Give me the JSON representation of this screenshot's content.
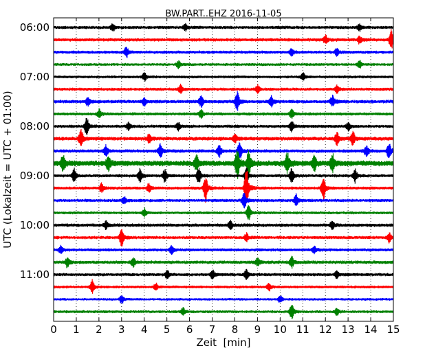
{
  "chart_data": {
    "type": "line",
    "title": "BW.PART..EHZ 2016-11-05",
    "xlabel": "Zeit  [min]",
    "ylabel": "UTC (Lokalzeit = UTC + 01:00)",
    "xlim": [
      0,
      15
    ],
    "x_ticks": [
      0,
      1,
      2,
      3,
      4,
      5,
      6,
      7,
      8,
      9,
      10,
      11,
      12,
      13,
      14,
      15
    ],
    "y_tick_labels": [
      "06:00",
      "07:00",
      "08:00",
      "09:00",
      "10:00",
      "11:00"
    ],
    "trace_interval_min": 15,
    "grid": "vertical dotted at each minute",
    "series_colors": [
      "#000000",
      "#ff0000",
      "#0000ff",
      "#008000"
    ],
    "traces": [
      {
        "start": "06:00",
        "color": "#000000",
        "base_amp": 1.0,
        "events": [
          [
            2.6,
            1.4
          ],
          [
            5.8,
            1.2
          ],
          [
            13.5,
            1.2
          ]
        ]
      },
      {
        "start": "06:15",
        "color": "#ff0000",
        "base_amp": 1.1,
        "events": [
          [
            14.9,
            3.5
          ],
          [
            12.0,
            1.5
          ],
          [
            13.5,
            1.5
          ]
        ]
      },
      {
        "start": "06:30",
        "color": "#0000ff",
        "base_amp": 1.0,
        "events": [
          [
            3.2,
            2.0
          ],
          [
            10.5,
            1.4
          ],
          [
            12.5,
            1.5
          ]
        ]
      },
      {
        "start": "06:45",
        "color": "#008000",
        "base_amp": 0.9,
        "events": [
          [
            5.5,
            1.4
          ],
          [
            13.5,
            1.5
          ]
        ]
      },
      {
        "start": "07:00",
        "color": "#000000",
        "base_amp": 0.9,
        "events": [
          [
            4.0,
            1.6
          ],
          [
            11.0,
            1.4
          ]
        ]
      },
      {
        "start": "07:15",
        "color": "#ff0000",
        "base_amp": 1.0,
        "events": [
          [
            5.6,
            1.6
          ],
          [
            9.0,
            1.4
          ],
          [
            12.5,
            1.4
          ]
        ]
      },
      {
        "start": "07:30",
        "color": "#0000ff",
        "base_amp": 1.1,
        "events": [
          [
            1.5,
            1.6
          ],
          [
            4.0,
            1.6
          ],
          [
            6.5,
            2.2
          ],
          [
            8.1,
            3.5
          ],
          [
            9.6,
            2.0
          ],
          [
            12.3,
            2.2
          ]
        ]
      },
      {
        "start": "07:45",
        "color": "#008000",
        "base_amp": 1.0,
        "events": [
          [
            2.0,
            1.6
          ],
          [
            6.5,
            1.6
          ],
          [
            10.5,
            1.6
          ]
        ]
      },
      {
        "start": "08:00",
        "color": "#000000",
        "base_amp": 1.0,
        "events": [
          [
            1.45,
            3.5
          ],
          [
            3.3,
            1.5
          ],
          [
            5.5,
            1.5
          ],
          [
            10.5,
            2.2
          ],
          [
            13.0,
            1.6
          ]
        ]
      },
      {
        "start": "08:15",
        "color": "#ff0000",
        "base_amp": 1.2,
        "events": [
          [
            1.2,
            3.8
          ],
          [
            4.2,
            1.6
          ],
          [
            8.0,
            1.6
          ],
          [
            12.5,
            2.4
          ],
          [
            13.2,
            2.6
          ]
        ]
      },
      {
        "start": "08:30",
        "color": "#0000ff",
        "base_amp": 1.1,
        "events": [
          [
            2.3,
            2.0
          ],
          [
            4.7,
            2.6
          ],
          [
            7.3,
            2.2
          ],
          [
            8.2,
            3.4
          ],
          [
            14.8,
            3.0
          ],
          [
            13.8,
            2.0
          ]
        ]
      },
      {
        "start": "08:45",
        "color": "#008000",
        "base_amp": 1.8,
        "events": [
          [
            0.4,
            3.0
          ],
          [
            2.4,
            2.8
          ],
          [
            6.3,
            3.2
          ],
          [
            8.1,
            6.0
          ],
          [
            8.6,
            4.5
          ],
          [
            10.3,
            4.0
          ],
          [
            12.3,
            3.5
          ],
          [
            11.5,
            2.8
          ]
        ]
      },
      {
        "start": "09:00",
        "color": "#000000",
        "base_amp": 1.0,
        "events": [
          [
            0.9,
            2.6
          ],
          [
            3.8,
            2.4
          ],
          [
            4.9,
            2.6
          ],
          [
            6.4,
            3.0
          ],
          [
            8.5,
            3.0
          ],
          [
            10.5,
            2.8
          ],
          [
            13.3,
            2.4
          ]
        ]
      },
      {
        "start": "09:15",
        "color": "#ff0000",
        "base_amp": 1.0,
        "events": [
          [
            6.7,
            5.0
          ],
          [
            8.5,
            8.0
          ],
          [
            11.9,
            4.5
          ],
          [
            2.1,
            1.8
          ],
          [
            4.2,
            1.8
          ]
        ]
      },
      {
        "start": "09:30",
        "color": "#0000ff",
        "base_amp": 1.0,
        "events": [
          [
            8.4,
            3.5
          ],
          [
            10.7,
            2.2
          ],
          [
            3.1,
            1.6
          ]
        ]
      },
      {
        "start": "09:45",
        "color": "#008000",
        "base_amp": 0.9,
        "events": [
          [
            8.6,
            2.8
          ],
          [
            4.0,
            1.5
          ]
        ]
      },
      {
        "start": "10:00",
        "color": "#000000",
        "base_amp": 1.1,
        "events": [
          [
            2.3,
            1.5
          ],
          [
            7.8,
            1.6
          ],
          [
            12.3,
            1.5
          ]
        ]
      },
      {
        "start": "10:15",
        "color": "#ff0000",
        "base_amp": 1.0,
        "events": [
          [
            3.0,
            3.6
          ],
          [
            14.8,
            1.8
          ],
          [
            8.5,
            1.5
          ]
        ]
      },
      {
        "start": "10:30",
        "color": "#0000ff",
        "base_amp": 1.0,
        "events": [
          [
            0.3,
            1.5
          ],
          [
            5.2,
            1.6
          ],
          [
            11.5,
            1.4
          ]
        ]
      },
      {
        "start": "10:45",
        "color": "#008000",
        "base_amp": 1.1,
        "events": [
          [
            0.6,
            2.0
          ],
          [
            3.5,
            1.6
          ],
          [
            9.0,
            1.6
          ],
          [
            10.5,
            2.0
          ]
        ]
      },
      {
        "start": "11:00",
        "color": "#000000",
        "base_amp": 1.0,
        "events": [
          [
            5.0,
            1.5
          ],
          [
            7.0,
            1.8
          ],
          [
            8.5,
            1.8
          ],
          [
            12.5,
            1.5
          ]
        ]
      },
      {
        "start": "11:15",
        "color": "#ff0000",
        "base_amp": 0.9,
        "events": [
          [
            1.7,
            2.4
          ],
          [
            4.5,
            1.4
          ],
          [
            9.5,
            1.4
          ]
        ]
      },
      {
        "start": "11:30",
        "color": "#0000ff",
        "base_amp": 0.8,
        "events": [
          [
            3.0,
            1.6
          ],
          [
            10.0,
            1.4
          ]
        ]
      },
      {
        "start": "11:45",
        "color": "#008000",
        "base_amp": 0.9,
        "events": [
          [
            10.5,
            3.0
          ],
          [
            5.7,
            1.4
          ],
          [
            12.5,
            1.4
          ]
        ]
      }
    ]
  }
}
